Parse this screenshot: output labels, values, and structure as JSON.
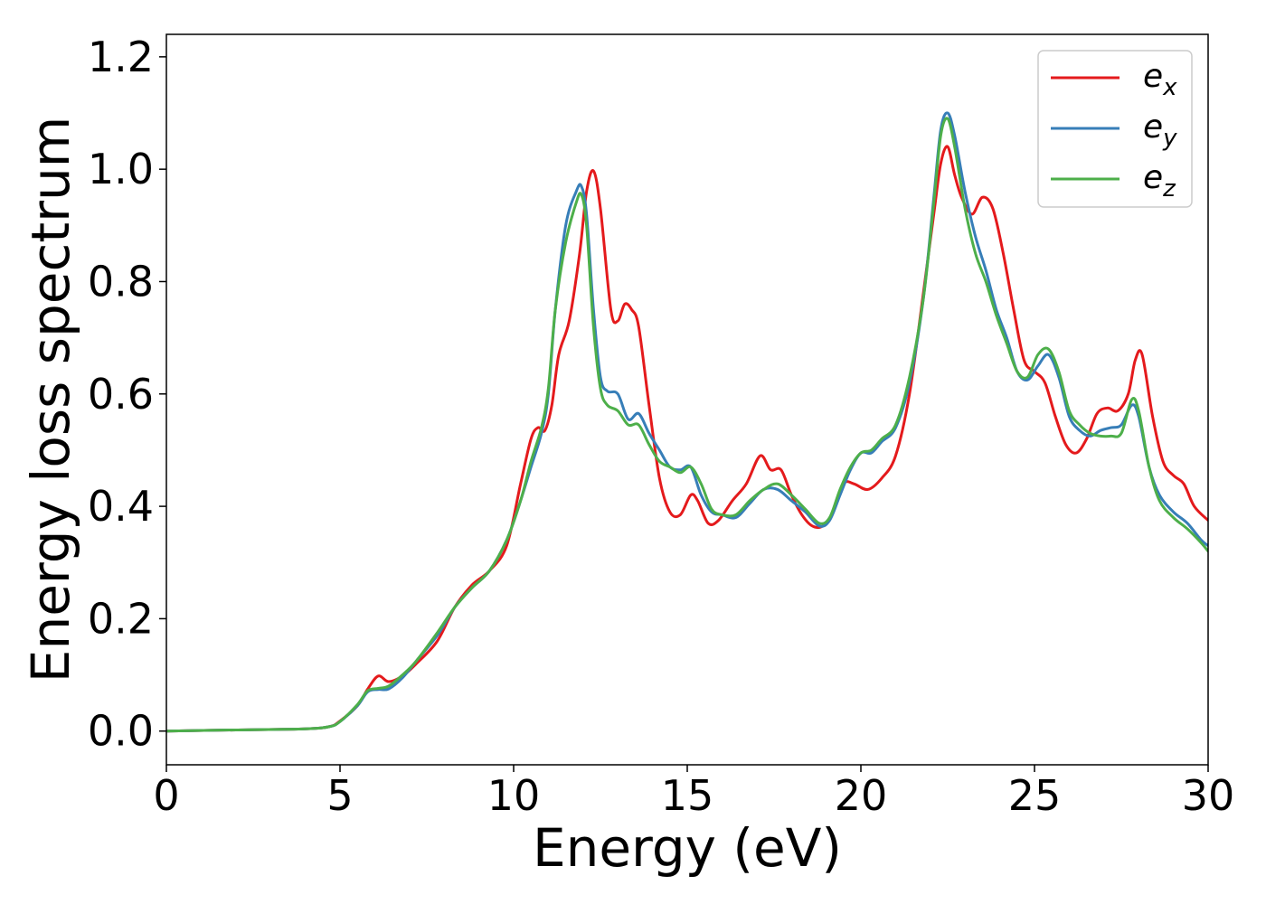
{
  "chart_data": {
    "type": "line",
    "title": "",
    "xlabel": "Energy (eV)",
    "ylabel": "Energy loss spectrum",
    "xlim": [
      0,
      30
    ],
    "ylim": [
      -0.06,
      1.24
    ],
    "xticks": [
      0,
      5,
      10,
      15,
      20,
      25,
      30
    ],
    "xtick_labels": [
      "0",
      "5",
      "10",
      "15",
      "20",
      "25",
      "30"
    ],
    "yticks": [
      0.0,
      0.2,
      0.4,
      0.6,
      0.8,
      1.0,
      1.2
    ],
    "ytick_labels": [
      "0.0",
      "0.2",
      "0.4",
      "0.6",
      "0.8",
      "1.0",
      "1.2"
    ],
    "grid": false,
    "legend_position": "top-right",
    "series": [
      {
        "name": "e_x",
        "label_base": "e",
        "label_sub": "x",
        "color": "#e41a1c",
        "x": [
          0,
          2,
          4,
          4.7,
          5,
          5.5,
          5.8,
          6.1,
          6.4,
          6.8,
          7.2,
          7.8,
          8.3,
          8.8,
          9.3,
          9.8,
          10.2,
          10.5,
          10.7,
          10.9,
          11.1,
          11.3,
          11.6,
          11.9,
          12.1,
          12.3,
          12.5,
          12.8,
          13.0,
          13.2,
          13.4,
          13.6,
          13.9,
          14.2,
          14.5,
          14.8,
          15.1,
          15.3,
          15.6,
          15.9,
          16.3,
          16.7,
          17.1,
          17.4,
          17.7,
          18.0,
          18.3,
          18.6,
          18.9,
          19.2,
          19.5,
          19.8,
          20.2,
          20.6,
          21.0,
          21.4,
          21.8,
          22.1,
          22.3,
          22.5,
          22.7,
          22.9,
          23.2,
          23.5,
          23.8,
          24.1,
          24.4,
          24.7,
          25.0,
          25.3,
          25.6,
          25.9,
          26.2,
          26.5,
          26.8,
          27.1,
          27.4,
          27.7,
          27.9,
          28.1,
          28.4,
          28.7,
          29.0,
          29.3,
          29.6,
          30.0
        ],
        "y": [
          0,
          0.002,
          0.004,
          0.008,
          0.018,
          0.045,
          0.075,
          0.098,
          0.088,
          0.098,
          0.12,
          0.16,
          0.22,
          0.26,
          0.285,
          0.33,
          0.44,
          0.52,
          0.54,
          0.535,
          0.58,
          0.67,
          0.73,
          0.85,
          0.96,
          0.997,
          0.93,
          0.75,
          0.73,
          0.76,
          0.75,
          0.72,
          0.58,
          0.45,
          0.39,
          0.385,
          0.42,
          0.41,
          0.37,
          0.375,
          0.41,
          0.44,
          0.49,
          0.465,
          0.465,
          0.42,
          0.385,
          0.365,
          0.365,
          0.39,
          0.44,
          0.44,
          0.43,
          0.45,
          0.49,
          0.6,
          0.78,
          0.92,
          1.01,
          1.04,
          0.99,
          0.95,
          0.92,
          0.95,
          0.93,
          0.85,
          0.75,
          0.66,
          0.64,
          0.62,
          0.56,
          0.51,
          0.495,
          0.52,
          0.565,
          0.575,
          0.57,
          0.6,
          0.66,
          0.67,
          0.56,
          0.48,
          0.455,
          0.44,
          0.4,
          0.375
        ]
      },
      {
        "name": "e_y",
        "label_base": "e",
        "label_sub": "y",
        "color": "#377eb8",
        "x": [
          0,
          2,
          4,
          4.7,
          5,
          5.5,
          5.8,
          6.1,
          6.4,
          6.8,
          7.2,
          7.8,
          8.3,
          8.8,
          9.3,
          9.8,
          10.2,
          10.5,
          10.8,
          11.0,
          11.2,
          11.5,
          11.8,
          11.95,
          12.1,
          12.3,
          12.5,
          12.7,
          13.0,
          13.3,
          13.6,
          13.9,
          14.2,
          14.5,
          14.8,
          15.1,
          15.4,
          15.7,
          16.0,
          16.4,
          16.8,
          17.2,
          17.6,
          18.0,
          18.4,
          18.8,
          19.1,
          19.4,
          19.7,
          20.0,
          20.3,
          20.6,
          21.0,
          21.4,
          21.8,
          22.1,
          22.3,
          22.5,
          22.7,
          23.0,
          23.3,
          23.6,
          23.9,
          24.2,
          24.5,
          24.8,
          25.1,
          25.4,
          25.7,
          26.0,
          26.3,
          26.6,
          26.9,
          27.2,
          27.5,
          27.8,
          28.0,
          28.3,
          28.6,
          29.0,
          29.4,
          29.8,
          30.0
        ],
        "y": [
          0,
          0.002,
          0.004,
          0.008,
          0.017,
          0.045,
          0.07,
          0.074,
          0.075,
          0.095,
          0.125,
          0.17,
          0.22,
          0.255,
          0.285,
          0.34,
          0.41,
          0.47,
          0.53,
          0.6,
          0.75,
          0.9,
          0.96,
          0.97,
          0.92,
          0.75,
          0.63,
          0.605,
          0.6,
          0.555,
          0.565,
          0.53,
          0.5,
          0.47,
          0.465,
          0.47,
          0.42,
          0.39,
          0.385,
          0.38,
          0.405,
          0.43,
          0.43,
          0.41,
          0.39,
          0.365,
          0.375,
          0.42,
          0.465,
          0.495,
          0.495,
          0.515,
          0.54,
          0.62,
          0.77,
          0.95,
          1.07,
          1.1,
          1.06,
          0.96,
          0.88,
          0.82,
          0.75,
          0.7,
          0.64,
          0.625,
          0.65,
          0.67,
          0.63,
          0.56,
          0.535,
          0.525,
          0.535,
          0.54,
          0.545,
          0.58,
          0.56,
          0.47,
          0.42,
          0.39,
          0.37,
          0.34,
          0.33
        ]
      },
      {
        "name": "e_z",
        "label_base": "e",
        "label_sub": "z",
        "color": "#4daf4a",
        "x": [
          0,
          2,
          4,
          4.7,
          5,
          5.5,
          5.8,
          6.1,
          6.4,
          6.8,
          7.2,
          7.8,
          8.3,
          8.8,
          9.3,
          9.8,
          10.2,
          10.5,
          10.8,
          11.0,
          11.2,
          11.5,
          11.8,
          11.95,
          12.1,
          12.3,
          12.5,
          12.7,
          13.0,
          13.3,
          13.6,
          13.9,
          14.2,
          14.5,
          14.8,
          15.1,
          15.4,
          15.7,
          16.0,
          16.4,
          16.8,
          17.2,
          17.6,
          18.0,
          18.4,
          18.8,
          19.1,
          19.4,
          19.7,
          20.0,
          20.3,
          20.6,
          21.0,
          21.4,
          21.8,
          22.1,
          22.3,
          22.5,
          22.7,
          23.0,
          23.3,
          23.6,
          23.9,
          24.2,
          24.5,
          24.8,
          25.1,
          25.4,
          25.7,
          26.0,
          26.3,
          26.6,
          26.9,
          27.2,
          27.5,
          27.8,
          28.0,
          28.3,
          28.6,
          29.0,
          29.4,
          29.8,
          30.0
        ],
        "y": [
          0,
          0.002,
          0.004,
          0.008,
          0.017,
          0.047,
          0.072,
          0.076,
          0.08,
          0.1,
          0.125,
          0.175,
          0.22,
          0.255,
          0.285,
          0.34,
          0.41,
          0.48,
          0.54,
          0.61,
          0.75,
          0.87,
          0.94,
          0.955,
          0.9,
          0.72,
          0.61,
          0.58,
          0.57,
          0.545,
          0.545,
          0.51,
          0.48,
          0.47,
          0.46,
          0.47,
          0.44,
          0.395,
          0.385,
          0.385,
          0.41,
          0.43,
          0.44,
          0.42,
          0.395,
          0.37,
          0.38,
          0.43,
          0.47,
          0.495,
          0.5,
          0.52,
          0.545,
          0.63,
          0.77,
          0.94,
          1.06,
          1.09,
          1.04,
          0.93,
          0.85,
          0.8,
          0.74,
          0.69,
          0.64,
          0.63,
          0.67,
          0.68,
          0.64,
          0.57,
          0.545,
          0.53,
          0.525,
          0.525,
          0.53,
          0.59,
          0.57,
          0.47,
          0.41,
          0.38,
          0.36,
          0.335,
          0.32
        ]
      }
    ]
  }
}
